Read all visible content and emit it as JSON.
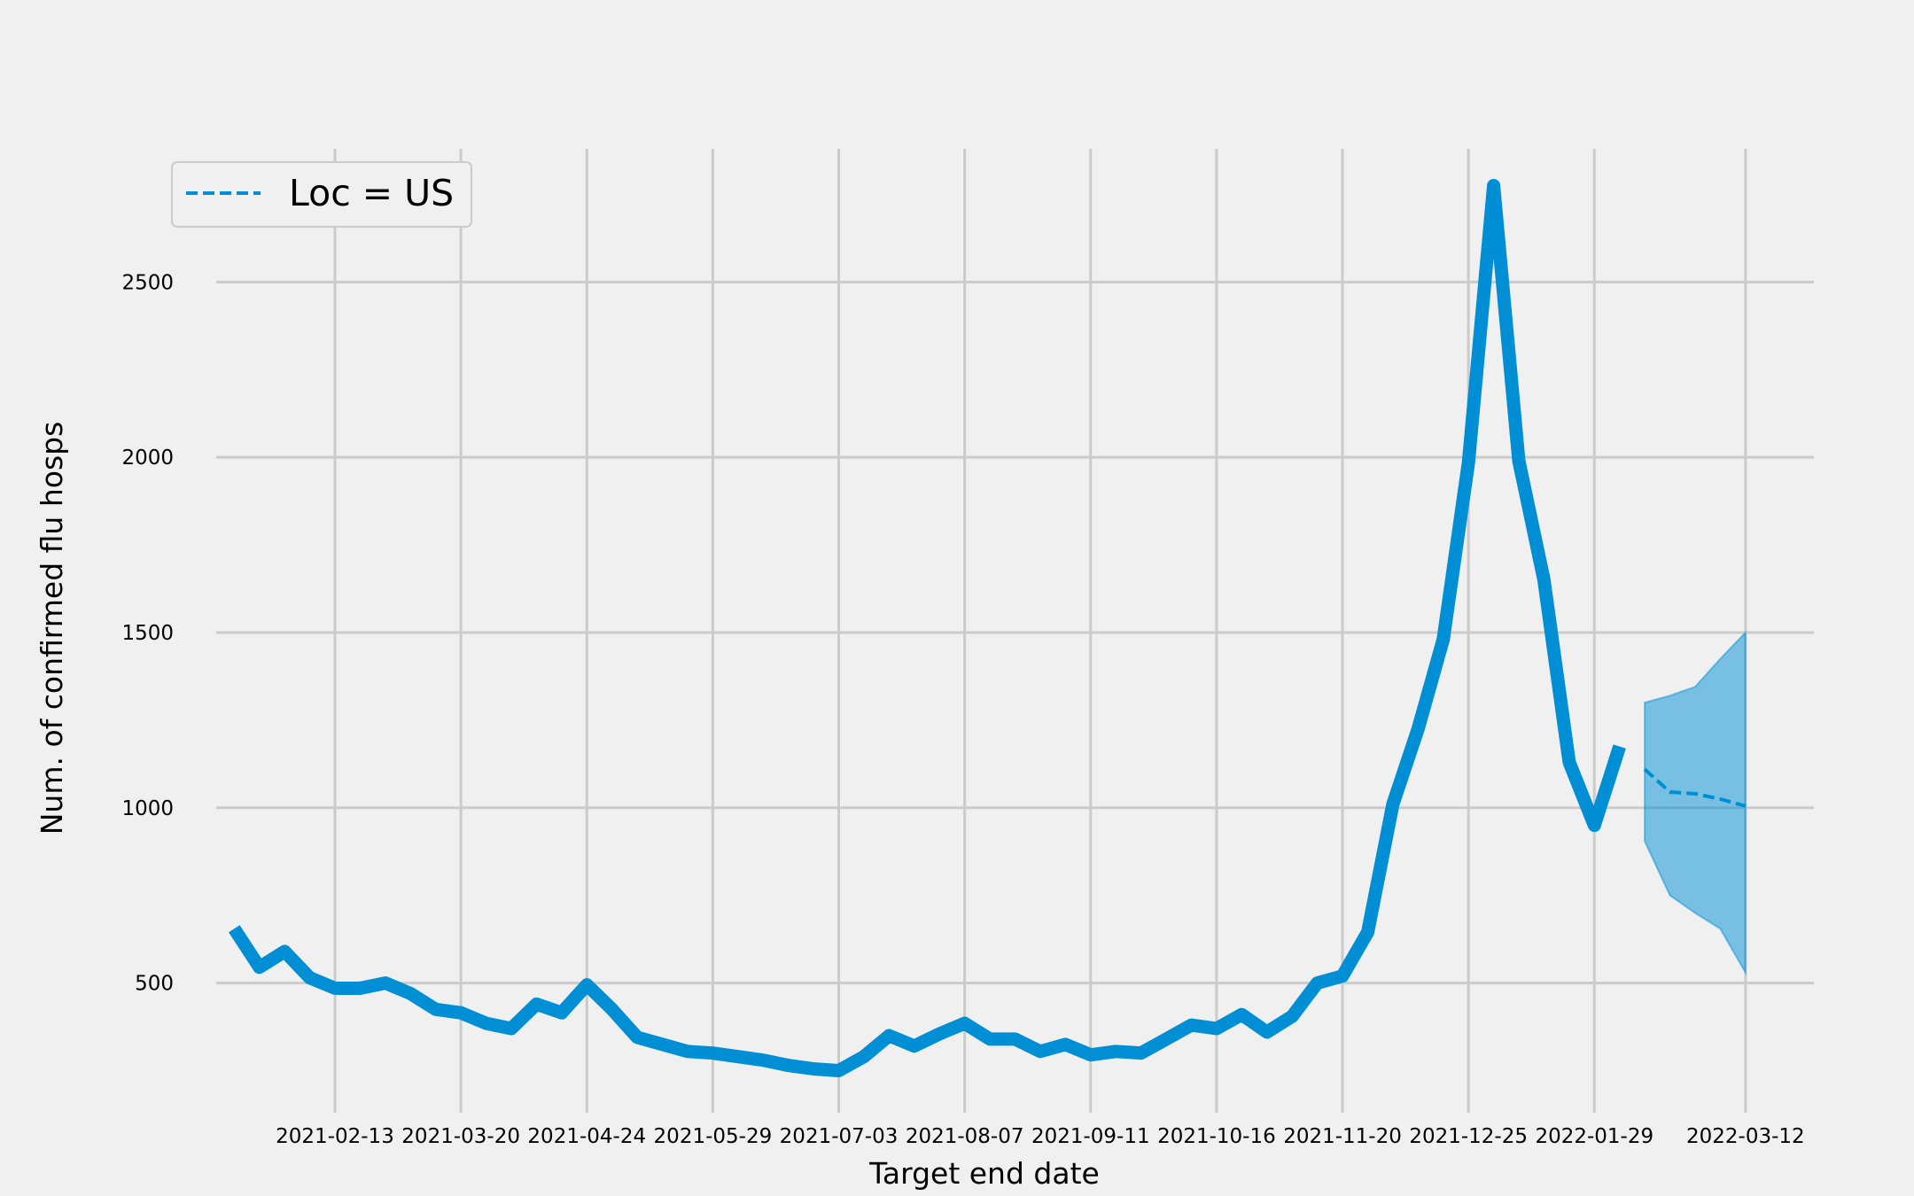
{
  "chart_data": {
    "type": "line",
    "xlabel": "Target end date",
    "ylabel": "Num. of confirmed flu hosps",
    "grid": true,
    "legend": {
      "placement": "top-left",
      "entries": [
        "Loc = US"
      ]
    },
    "x_ticks": [
      "2021-02-13",
      "2021-03-20",
      "2021-04-24",
      "2021-05-29",
      "2021-07-03",
      "2021-08-07",
      "2021-09-11",
      "2021-10-16",
      "2021-11-20",
      "2021-12-25",
      "2022-01-29",
      "2022-03-12"
    ],
    "y_ticks": [
      500,
      1000,
      1500,
      2000,
      2500
    ],
    "ylim": [
      130,
      2880
    ],
    "xlim": [
      "2021-01-11",
      "2022-03-31"
    ],
    "series": [
      {
        "kind": "observed",
        "x": [
          "2021-01-16",
          "2021-01-23",
          "2021-01-30",
          "2021-02-06",
          "2021-02-13",
          "2021-02-20",
          "2021-02-27",
          "2021-03-06",
          "2021-03-13",
          "2021-03-20",
          "2021-03-27",
          "2021-04-03",
          "2021-04-10",
          "2021-04-17",
          "2021-04-24",
          "2021-05-01",
          "2021-05-08",
          "2021-05-15",
          "2021-05-22",
          "2021-05-29",
          "2021-06-05",
          "2021-06-12",
          "2021-06-19",
          "2021-06-26",
          "2021-07-03",
          "2021-07-10",
          "2021-07-17",
          "2021-07-24",
          "2021-07-31",
          "2021-08-07",
          "2021-08-14",
          "2021-08-21",
          "2021-08-28",
          "2021-09-04",
          "2021-09-11",
          "2021-09-18",
          "2021-09-25",
          "2021-10-02",
          "2021-10-09",
          "2021-10-16",
          "2021-10-23",
          "2021-10-30",
          "2021-11-06",
          "2021-11-13",
          "2021-11-20",
          "2021-11-27",
          "2021-12-04",
          "2021-12-11",
          "2021-12-18",
          "2021-12-25",
          "2022-01-01",
          "2022-01-08",
          "2022-01-15",
          "2022-01-22",
          "2022-01-29",
          "2022-02-05"
        ],
        "y": [
          655,
          545,
          590,
          515,
          485,
          485,
          500,
          470,
          425,
          415,
          385,
          370,
          440,
          415,
          495,
          425,
          345,
          325,
          305,
          300,
          290,
          280,
          265,
          255,
          250,
          290,
          350,
          320,
          355,
          385,
          340,
          340,
          305,
          325,
          295,
          305,
          300,
          340,
          380,
          370,
          410,
          360,
          405,
          500,
          520,
          645,
          1010,
          1225,
          1480,
          1985,
          2775,
          1990,
          1650,
          1130,
          950,
          1175
        ]
      },
      {
        "kind": "forecast",
        "name": "Loc = US",
        "x": [
          "2022-02-12",
          "2022-02-19",
          "2022-02-26",
          "2022-03-05",
          "2022-03-12"
        ],
        "y": [
          1110,
          1045,
          1040,
          1025,
          1005
        ],
        "lower": [
          905,
          750,
          700,
          655,
          530
        ],
        "upper": [
          1300,
          1320,
          1345,
          1425,
          1500
        ]
      }
    ]
  },
  "colors": {
    "line": "#008fd5",
    "band": "#77bfe2",
    "grid": "#cbcbcb",
    "background": "#f0f0f0"
  }
}
